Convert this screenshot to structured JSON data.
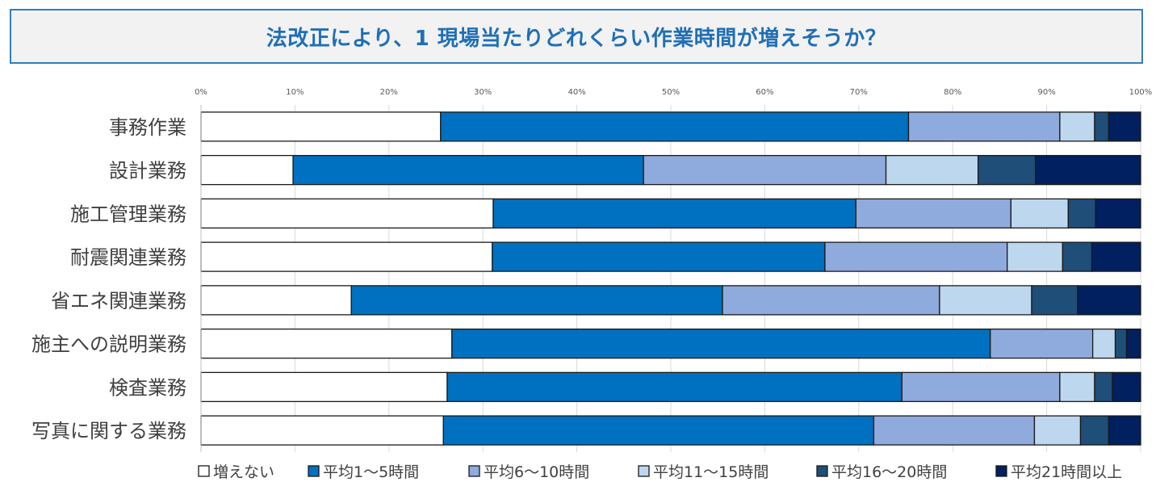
{
  "chart_data": {
    "type": "bar",
    "orientation": "horizontal",
    "stacked": true,
    "percent": true,
    "title": "法改正により、1 現場当たりどれくらい作業時間が増えそうか？",
    "xlim": [
      0,
      100
    ],
    "xticks": [
      "0%",
      "10%",
      "20%",
      "30%",
      "40%",
      "50%",
      "60%",
      "70%",
      "80%",
      "90%",
      "100%"
    ],
    "categories": [
      "事務作業",
      "設計業務",
      "施工管理業務",
      "耐震関連業務",
      "省エネ関連業務",
      "施主への説明業務",
      "検査業務",
      "写真に関する業務"
    ],
    "series": [
      {
        "name": "増えない",
        "color": "#ffffff",
        "values": [
          25.5,
          9.8,
          31.1,
          31.0,
          16.0,
          26.7,
          26.2,
          25.8
        ]
      },
      {
        "name": "平均1～5時間",
        "color": "#0070c0",
        "values": [
          49.8,
          37.3,
          38.6,
          35.4,
          39.5,
          57.3,
          48.4,
          45.8
        ]
      },
      {
        "name": "平均6～10時間",
        "color": "#8faadc",
        "values": [
          16.1,
          25.8,
          16.5,
          19.4,
          23.1,
          10.9,
          16.8,
          17.1
        ]
      },
      {
        "name": "平均11～15時間",
        "color": "#bdd7ee",
        "values": [
          3.7,
          9.8,
          6.1,
          5.9,
          9.8,
          2.4,
          3.7,
          4.9
        ]
      },
      {
        "name": "平均16～20時間",
        "color": "#1f4e79",
        "values": [
          1.5,
          6.1,
          2.9,
          3.1,
          4.9,
          1.2,
          1.9,
          3.0
        ]
      },
      {
        "name": "平均21時間以上",
        "color": "#002060",
        "values": [
          3.4,
          11.2,
          4.8,
          5.2,
          6.7,
          1.5,
          3.0,
          3.4
        ]
      }
    ],
    "legend_position": "bottom",
    "grid": true
  }
}
